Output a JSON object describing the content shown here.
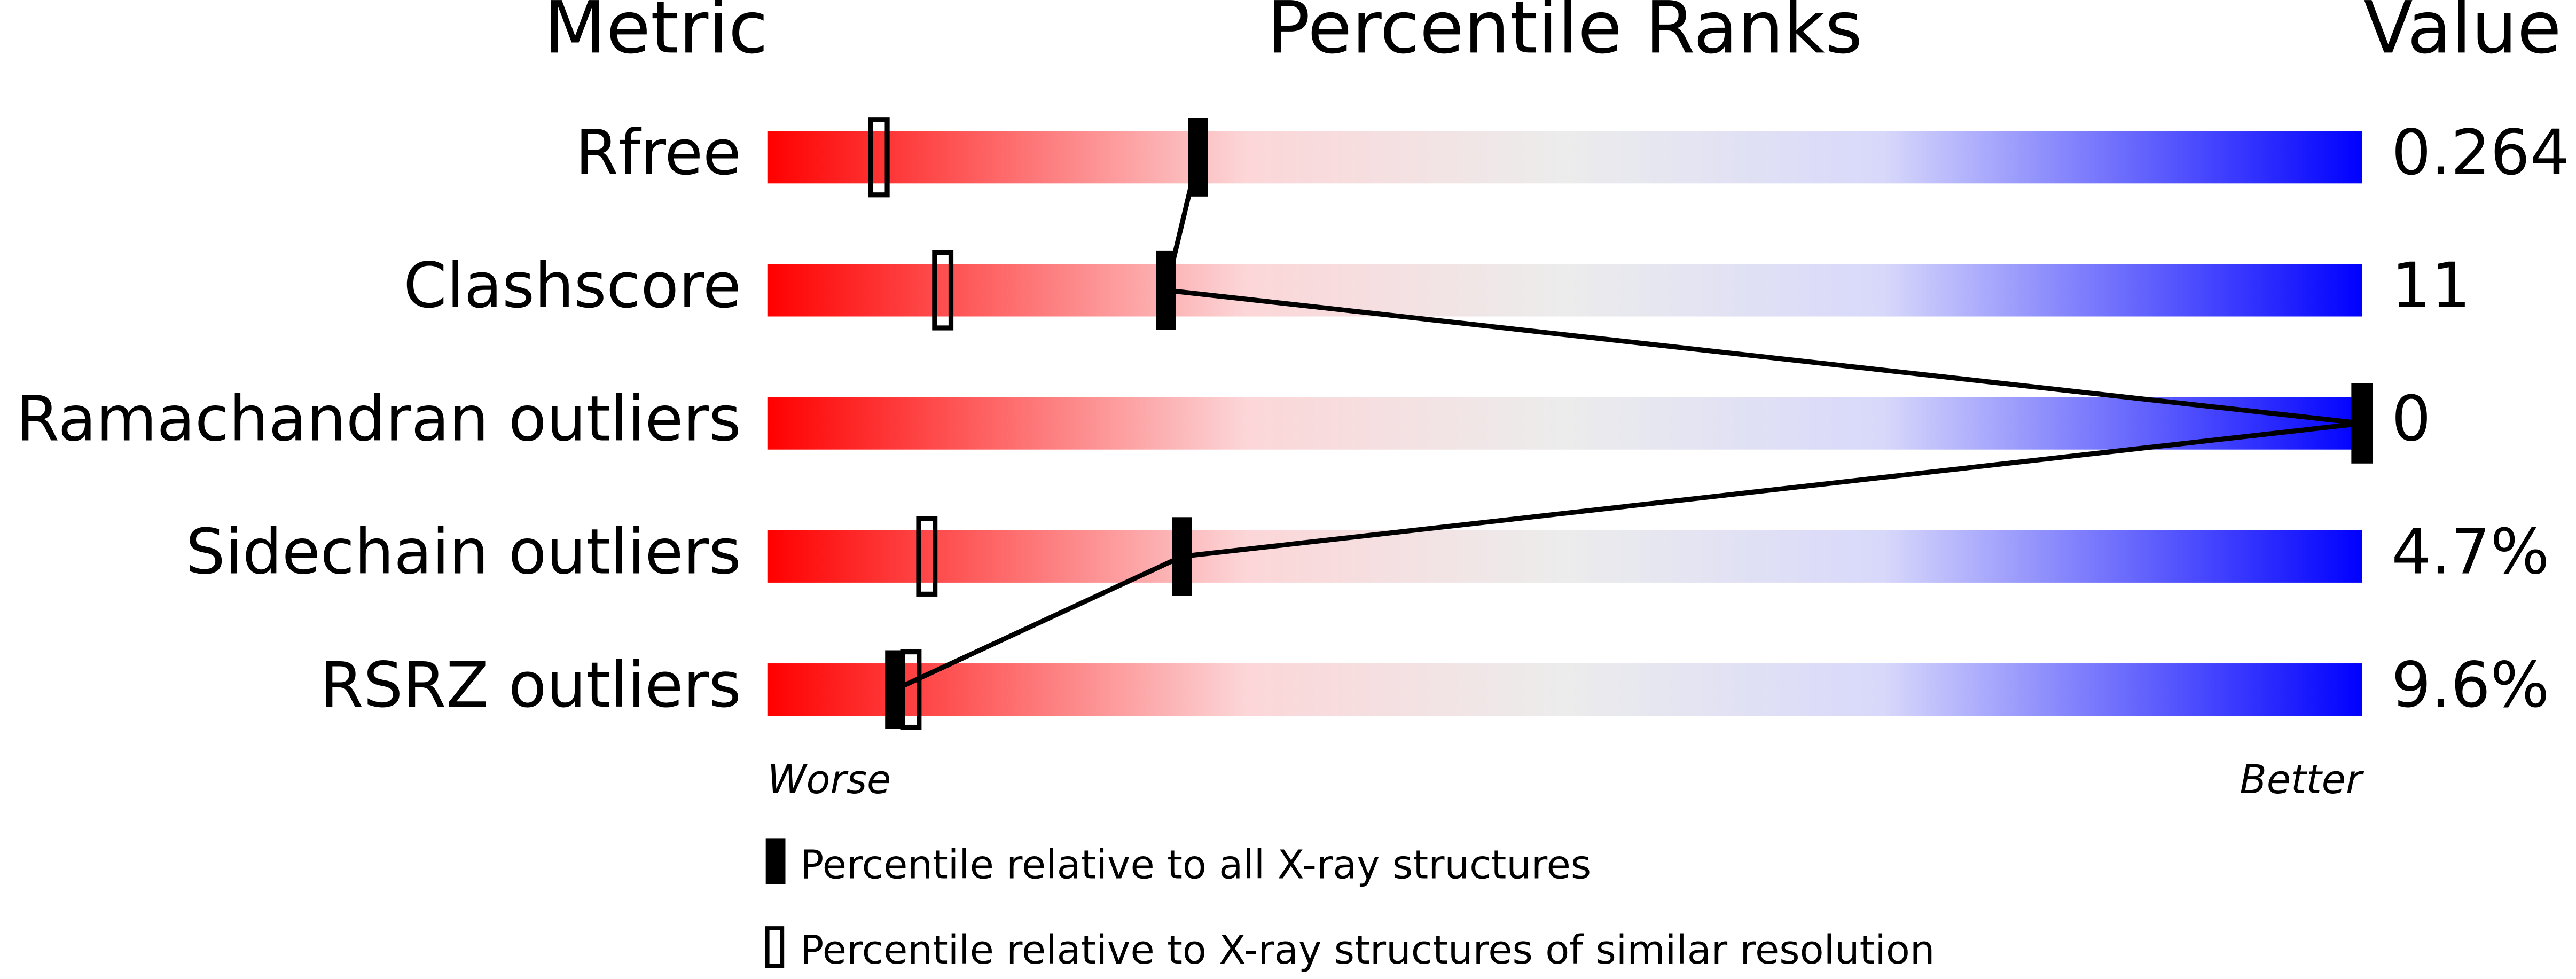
{
  "chart_data": {
    "type": "percentile-slider",
    "headers": [
      "Metric",
      "Percentile Ranks",
      "Value"
    ],
    "categories": [
      "Rfree",
      "Clashscore",
      "Ramachandran outliers",
      "Sidechain outliers",
      "RSRZ outliers"
    ],
    "value_labels": [
      "0.264",
      "11",
      "0",
      "4.7%",
      "9.6%"
    ],
    "xlim": [
      0,
      100
    ],
    "worse_label": "Worse",
    "better_label": "Better",
    "series": [
      {
        "name": "Percentile relative to all X-ray structures",
        "color": "#000000",
        "values": [
          27,
          25,
          100,
          26,
          8
        ]
      },
      {
        "name": "Percentile relative to X-ray structures of similar resolution",
        "color": "#000000",
        "values": [
          7,
          11,
          100,
          10,
          9
        ]
      }
    ]
  }
}
